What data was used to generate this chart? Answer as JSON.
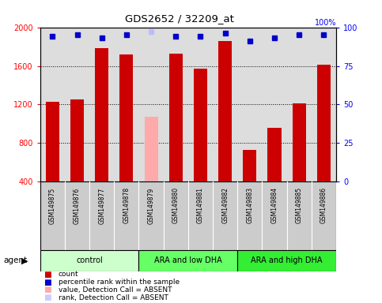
{
  "title": "GDS2652 / 32209_at",
  "samples": [
    "GSM149875",
    "GSM149876",
    "GSM149877",
    "GSM149878",
    "GSM149879",
    "GSM149880",
    "GSM149881",
    "GSM149882",
    "GSM149883",
    "GSM149884",
    "GSM149885",
    "GSM149886"
  ],
  "counts": [
    1230,
    1250,
    1780,
    1720,
    1070,
    1730,
    1570,
    1860,
    730,
    960,
    1210,
    1610
  ],
  "absent": [
    false,
    false,
    false,
    false,
    true,
    false,
    false,
    false,
    false,
    false,
    false,
    false
  ],
  "percentile_ranks": [
    94,
    95,
    93,
    95,
    97,
    94,
    94,
    96,
    91,
    93,
    95,
    95
  ],
  "absent_rank": [
    false,
    false,
    false,
    false,
    true,
    false,
    false,
    false,
    false,
    false,
    false,
    false
  ],
  "groups": [
    {
      "label": "control",
      "start": 0,
      "end": 3,
      "color": "#ccffcc"
    },
    {
      "label": "ARA and low DHA",
      "start": 4,
      "end": 7,
      "color": "#66ff66"
    },
    {
      "label": "ARA and high DHA",
      "start": 8,
      "end": 11,
      "color": "#33ee33"
    }
  ],
  "bar_color_present": "#cc0000",
  "bar_color_absent": "#ffaaaa",
  "dot_color_present": "#0000cc",
  "dot_color_absent": "#bbbbff",
  "ylim": [
    400,
    2000
  ],
  "y_ticks": [
    400,
    800,
    1200,
    1600,
    2000
  ],
  "right_ylim": [
    0,
    100
  ],
  "right_yticks": [
    0,
    25,
    50,
    75,
    100
  ],
  "plot_bg_color": "#dddddd",
  "label_bg_color": "#cccccc",
  "legend_colors": [
    "#cc0000",
    "#0000cc",
    "#ffaaaa",
    "#ccccff"
  ],
  "legend_labels": [
    "count",
    "percentile rank within the sample",
    "value, Detection Call = ABSENT",
    "rank, Detection Call = ABSENT"
  ]
}
